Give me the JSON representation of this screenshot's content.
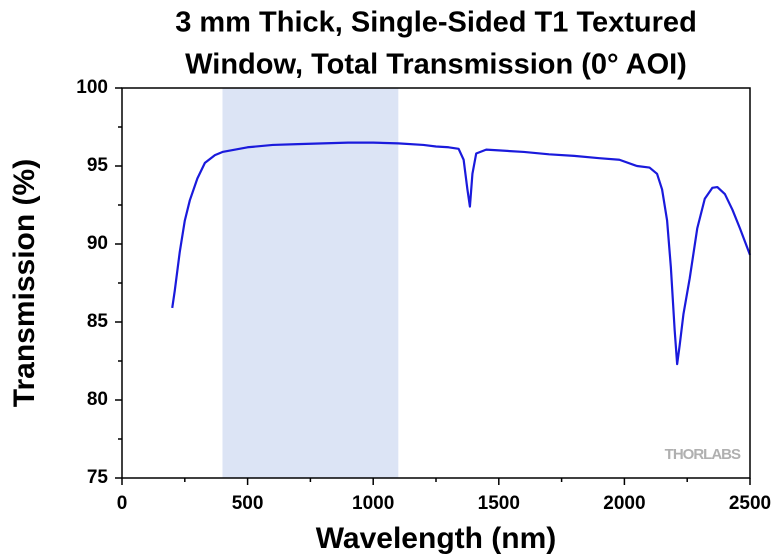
{
  "chart_data": {
    "type": "line",
    "title": [
      "3 mm Thick, Single-Sided T1 Textured",
      "Window, Total Transmission (0° AOI)"
    ],
    "x_label": "Wavelength (nm)",
    "y_label": "Transmission (%)",
    "annotation": "THORLABS",
    "shaded_xrange": [
      400,
      1100
    ],
    "shade_color": "#dce4f5",
    "xlim": [
      0,
      2500
    ],
    "ylim": [
      75,
      100
    ],
    "xticks": [
      0,
      500,
      1000,
      1500,
      2000,
      2500
    ],
    "yticks": [
      75,
      80,
      85,
      90,
      95,
      100
    ],
    "xminorticks": [
      250,
      750,
      1250,
      1750,
      2250
    ],
    "yminorticks": [
      77.5,
      82.5,
      87.5,
      92.5,
      97.5
    ],
    "x": [
      200,
      210,
      230,
      250,
      270,
      300,
      330,
      370,
      400,
      500,
      600,
      700,
      800,
      900,
      1000,
      1100,
      1200,
      1250,
      1300,
      1340,
      1360,
      1375,
      1385,
      1395,
      1410,
      1450,
      1500,
      1600,
      1700,
      1800,
      1900,
      1980,
      2050,
      2100,
      2130,
      2150,
      2170,
      2185,
      2200,
      2210,
      2220,
      2235,
      2260,
      2290,
      2320,
      2350,
      2370,
      2400,
      2430,
      2460,
      2500
    ],
    "series": [
      {
        "name": "Transmission",
        "color": "#1a1adc",
        "values": [
          85.9,
          87,
          89.5,
          91.5,
          92.8,
          94.2,
          95.2,
          95.7,
          95.9,
          96.2,
          96.35,
          96.4,
          96.45,
          96.5,
          96.5,
          96.45,
          96.35,
          96.25,
          96.2,
          96.1,
          95.4,
          93.5,
          92.4,
          94.5,
          95.8,
          96.05,
          96.0,
          95.9,
          95.75,
          95.65,
          95.5,
          95.4,
          95.0,
          94.9,
          94.5,
          93.5,
          91.5,
          88.5,
          84.5,
          82.3,
          83.5,
          85.5,
          87.8,
          91,
          92.9,
          93.6,
          93.65,
          93.2,
          92.2,
          91.0,
          89.3
        ]
      }
    ]
  }
}
